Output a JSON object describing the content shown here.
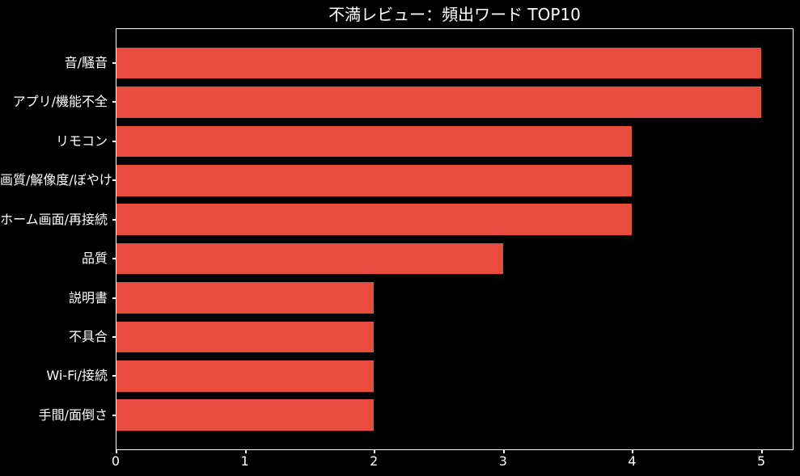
{
  "chart_data": {
    "type": "bar",
    "orientation": "horizontal",
    "title": "不満レビュー：頻出ワード TOP10",
    "categories": [
      "音/騒音",
      "アプリ/機能不全",
      "リモコン",
      "画質/解像度/ぼやけ",
      "ホーム画面/再接続",
      "品質",
      "説明書",
      "不具合",
      "Wi-Fi/接続",
      "手間/面倒さ"
    ],
    "values": [
      5,
      5,
      4,
      4,
      4,
      3,
      2,
      2,
      2,
      2
    ],
    "xlabel": "",
    "ylabel": "",
    "x_ticks": [
      "0",
      "1",
      "2",
      "3",
      "4",
      "5"
    ],
    "xlim": [
      0,
      5.25
    ],
    "grid": false,
    "legend": "none"
  },
  "colors": {
    "background": "#000000",
    "bar": "#e74c3c",
    "text": "#ffffff",
    "axis": "#ffffff"
  }
}
